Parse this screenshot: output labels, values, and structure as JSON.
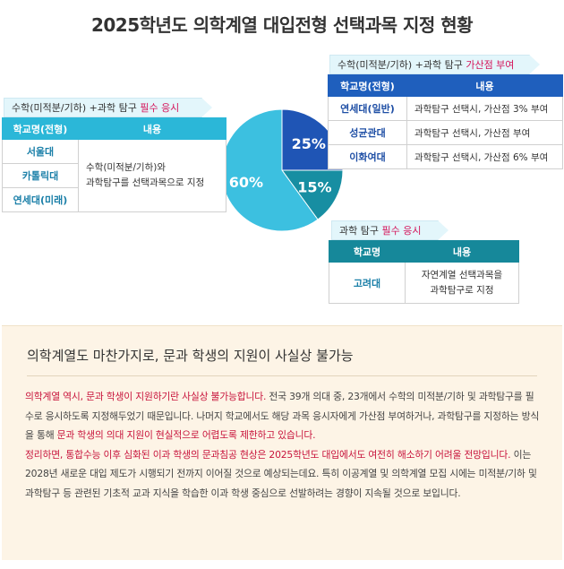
{
  "title": "2025학년도 의학계열 대입전형 선택과목 지정 현황",
  "chart_data": {
    "type": "pie",
    "categories": [
      "필수 응시",
      "가산점 부여",
      "과탐 필수 응시"
    ],
    "values": [
      60,
      25,
      15
    ],
    "labels": [
      "60%",
      "25%",
      "15%"
    ],
    "colors": [
      "#3cc0e0",
      "#1f55b5",
      "#178ea2"
    ]
  },
  "group_required": {
    "tag_prefix": "수학(미적분/기하) +과학 탐구 ",
    "tag_highlight": "필수 응시",
    "headers": [
      "학교명(전형)",
      "내용"
    ],
    "schools": [
      "서울대",
      "카톨릭대",
      "연세대(미래)"
    ],
    "content_line1": "수학(미적분/기하)와",
    "content_line2": "과학탐구를 선택과목으로 지정"
  },
  "group_bonus": {
    "tag_prefix": "수학(미적분/기하) +과학 탐구 ",
    "tag_highlight": "가산점 부여",
    "headers": [
      "학교명(전형)",
      "내용"
    ],
    "rows": [
      {
        "school": "연세대(일반)",
        "content": "과학탐구 선택시, 가산점 3% 부여"
      },
      {
        "school": "성균관대",
        "content": "과학탐구 선택시, 가산점 부여"
      },
      {
        "school": "이화여대",
        "content": "과학탐구 선택시, 가산점 6% 부여"
      }
    ]
  },
  "group_science": {
    "tag_prefix": "과학 탐구 ",
    "tag_highlight": "필수 응시",
    "headers": [
      "학교명",
      "내용"
    ],
    "school": "고려대",
    "content_line1": "자연계열 선택과목을",
    "content_line2": "과학탐구로 지정"
  },
  "summary": {
    "heading": "의학계열도 마찬가지로, 문과 학생의 지원이 사실상 불가능",
    "p1_red": "의학계열 역시, 문과 학생이 지원하기란 사실상 불가능합니다.",
    "p1_rest": " 전국 39개 의대 중, 23개에서 수학의 미적분/기하 및 과학탐구를 필수로 응시하도록 지정해두었기 때문입니다. 나머지 학교에서도 해당 과목 응시자에게 가산점 부여하거나, 과학탐구를 지정하는 방식을 통해 ",
    "p1_red2": "문과 학생의 의대 지원이 현실적으로 어렵도록 제한하고 있습니다.",
    "p2_red": "정리하면, 통합수능 이후 심화된 이과 학생의 문과침공 현상은 2025학년도 대입에서도 여전히 해소하기 어려울 전망입니다.",
    "p2_rest": " 이는 2028년 새로운 대입 제도가 시행되기 전까지 이어질 것으로 예상되는데요. 특히 이공계열 및 의학계열 모집 시에는 미적분/기하 및 과학탐구 등 관련된 기초적 교과 지식을 학습한 이과 학생 중심으로 선발하려는 경향이 지속될 것으로 보입니다."
  }
}
